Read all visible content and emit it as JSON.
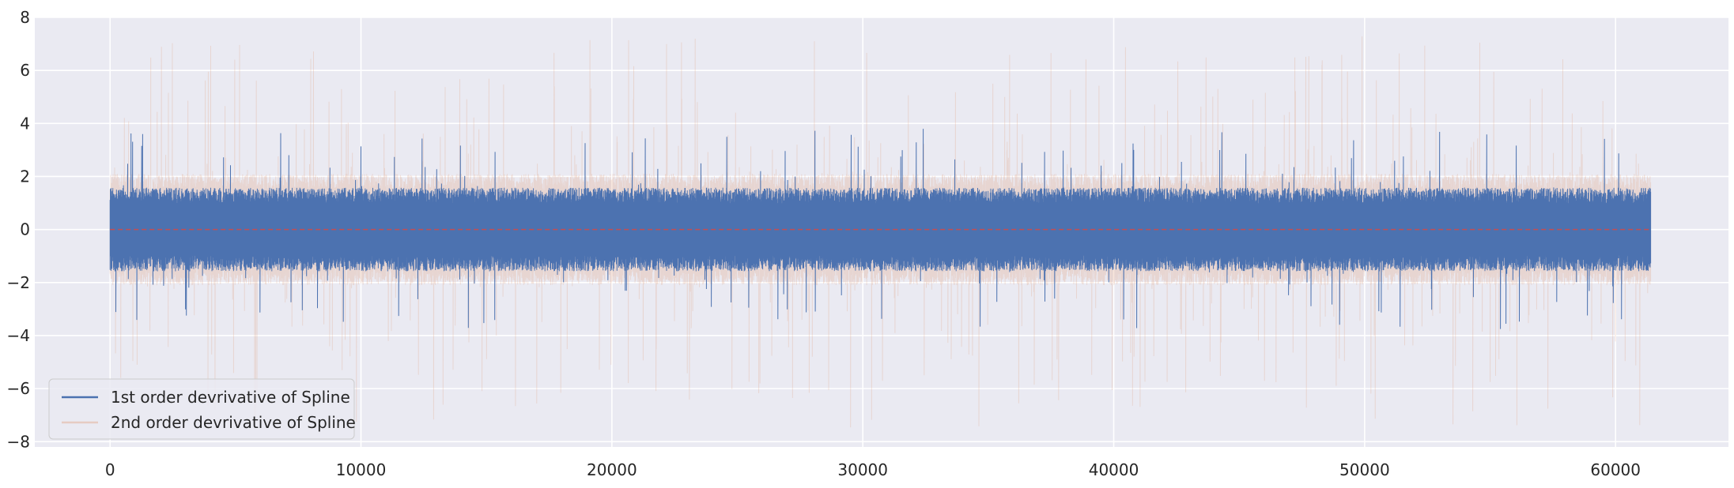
{
  "chart_data": {
    "type": "line",
    "title": "",
    "xlabel": "",
    "ylabel": "",
    "xlim": [
      -3000,
      64500
    ],
    "ylim": [
      -8.2,
      8.0
    ],
    "x_ticks": [
      0,
      10000,
      20000,
      30000,
      40000,
      50000,
      60000
    ],
    "x_tick_labels": [
      "0",
      "10000",
      "20000",
      "30000",
      "40000",
      "50000",
      "60000"
    ],
    "y_ticks": [
      -8,
      -6,
      -4,
      -2,
      0,
      2,
      4,
      6,
      8
    ],
    "y_tick_labels": [
      "−8",
      "−6",
      "−4",
      "−2",
      "0",
      "2",
      "4",
      "6",
      "8"
    ],
    "grid": true,
    "background": "#eaeaf2",
    "legend_position": "lower-left",
    "series": [
      {
        "name": "1st order devrivative of Spline",
        "color": "#4c72b0",
        "x_range": [
          0,
          61400
        ],
        "typical_band": [
          -1.5,
          1.5
        ],
        "peak_max": 3.8,
        "peak_min": -3.8,
        "spike_count": 200,
        "seed": 7
      },
      {
        "name": "2nd order devrivative of Spline",
        "color": "#dd8452",
        "opacity": 0.2,
        "x_range": [
          0,
          61400
        ],
        "typical_band": [
          -2.0,
          2.0
        ],
        "peak_max": 7.3,
        "peak_min": -7.5,
        "spike_count": 400,
        "seed": 13
      },
      {
        "name": "",
        "color": "#c44e52",
        "style": "dashed",
        "x": [
          0,
          61400
        ],
        "y": [
          0,
          0
        ]
      }
    ]
  }
}
